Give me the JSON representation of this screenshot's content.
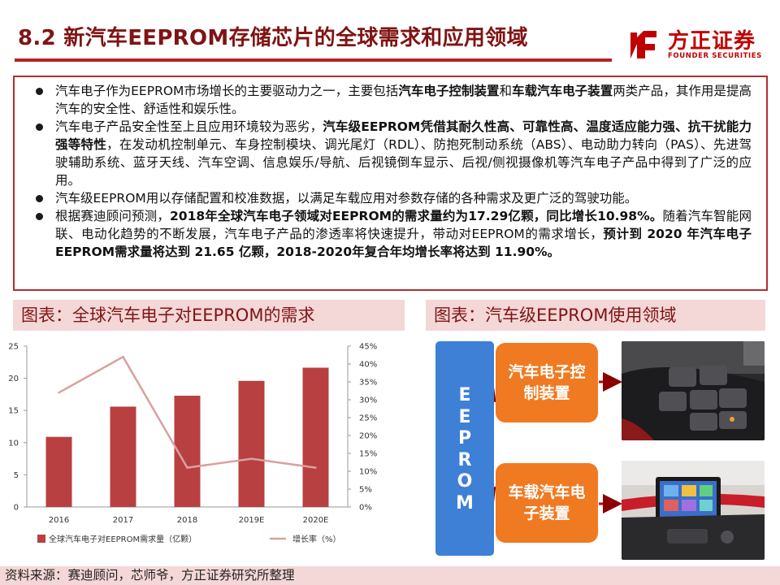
{
  "header": {
    "title": "8.2 新汽车EEPROM存储芯片的全球需求和应用领域",
    "logo_cn": "方正证券",
    "logo_en": "FOUNDER SECURITIES"
  },
  "colors": {
    "title": "#7f1414",
    "accent": "#b22222",
    "bar": "#b84040",
    "line": "#d9a0a0",
    "blue_box": "#3d80d5",
    "orange_box": "#f07a22",
    "caption_bg": "#f4d7d7"
  },
  "bullets": [
    {
      "segments": [
        {
          "t": "汽车电子作为EEPROM市场增长的主要驱动力之一，主要包括",
          "b": false
        },
        {
          "t": "汽车电子控制装置",
          "b": true
        },
        {
          "t": "和",
          "b": false
        },
        {
          "t": "车载汽车电子装置",
          "b": true
        },
        {
          "t": "两类产品，其作用是提高汽车的安全性、舒适性和娱乐性。",
          "b": false
        }
      ]
    },
    {
      "segments": [
        {
          "t": "汽车电子产品安全性至上且应用环境较为恶劣，",
          "b": false
        },
        {
          "t": "汽车级EEPROM凭借其耐久性高、可靠性高、温度适应能力强、抗干扰能力强等特性",
          "b": true
        },
        {
          "t": "，在发动机控制单元、车身控制模块、调光尾灯（RDL）、防抱死制动系统（ABS）、电动助力转向（PAS）、先进驾驶辅助系统、蓝牙天线、汽车空调、信息娱乐/导航、后视镜倒车显示、后视/侧视摄像机等汽车电子产品中得到了广泛的应用。",
          "b": false
        }
      ]
    },
    {
      "segments": [
        {
          "t": "汽车级EEPROM用以存储配置和校准数据，以满足车载应用对参数存储的各种需求及更广泛的驾驶功能。",
          "b": false
        }
      ]
    },
    {
      "segments": [
        {
          "t": "根据赛迪顾问预测，",
          "b": false
        },
        {
          "t": "2018年全球汽车电子领域对EEPROM的需求量约为17.29亿颗，同比增长10.98%。",
          "b": true
        },
        {
          "t": "随着汽车智能网联、电动化趋势的不断发展，汽车电子产品的渗透率将快速提升，带动对EEPROM的需求增长，",
          "b": false
        },
        {
          "t": "预计到 2020 年汽车电子EEPROM需求量将达到 21.65 亿颗，2018-2020年复合年均增长率将达到 11.90%。",
          "b": true
        }
      ]
    }
  ],
  "captions": {
    "left": "图表：全球汽车电子对EEPROM的需求",
    "right": "图表：汽车级EEPROM使用领域"
  },
  "chart_data": {
    "type": "bar",
    "categories": [
      "2016",
      "2017",
      "2018",
      "2019E",
      "2020E"
    ],
    "series": [
      {
        "name": "全球汽车电子对EEPROM需求量（亿颗）",
        "type": "bar",
        "axis": "left",
        "values": [
          10.9,
          15.6,
          17.29,
          19.6,
          21.65
        ]
      },
      {
        "name": "增长率（%）",
        "type": "line",
        "axis": "right",
        "values": [
          32,
          42,
          11,
          13.5,
          11
        ]
      }
    ],
    "y_left": {
      "min": 0,
      "max": 25,
      "ticks": [
        "0",
        "5",
        "10",
        "15",
        "20",
        "25"
      ]
    },
    "y_right": {
      "min": 0,
      "max": 45,
      "ticks": [
        "0%",
        "5%",
        "10%",
        "15%",
        "20%",
        "25%",
        "30%",
        "35%",
        "40%",
        "45%"
      ]
    },
    "grid": false,
    "legend": "bottom"
  },
  "diagram": {
    "root_letters": [
      "E",
      "E",
      "P",
      "R",
      "O",
      "M"
    ],
    "branches": [
      {
        "label": "汽车电子控制装置",
        "image": "car-center-console-buttons"
      },
      {
        "label": "车载汽车电子装置",
        "image": "car-infotainment-screen"
      }
    ]
  },
  "footer": {
    "source": "资料来源：赛迪顾问，芯师爷，方正证券研究所整理"
  }
}
